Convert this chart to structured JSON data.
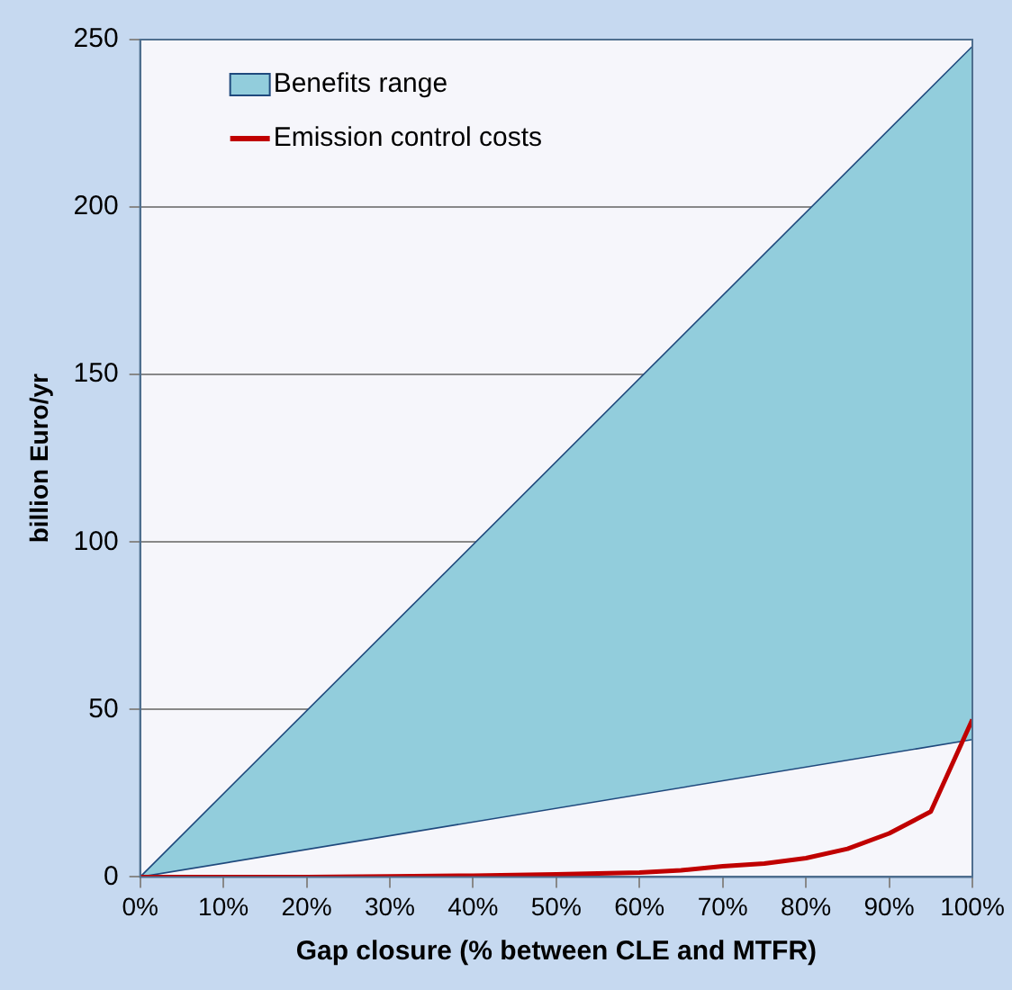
{
  "chart_data": {
    "type": "line",
    "xlabel": "Gap closure (% between CLE and MTFR)",
    "ylabel": "billion Euro/yr",
    "xlim": [
      0,
      100
    ],
    "ylim": [
      0,
      250
    ],
    "xticks": [
      {
        "value": 0,
        "label": "0%"
      },
      {
        "value": 10,
        "label": "10%"
      },
      {
        "value": 20,
        "label": "20%"
      },
      {
        "value": 30,
        "label": "30%"
      },
      {
        "value": 40,
        "label": "40%"
      },
      {
        "value": 50,
        "label": "50%"
      },
      {
        "value": 60,
        "label": "60%"
      },
      {
        "value": 70,
        "label": "70%"
      },
      {
        "value": 80,
        "label": "80%"
      },
      {
        "value": 90,
        "label": "90%"
      },
      {
        "value": 100,
        "label": "100%"
      }
    ],
    "yticks": [
      0,
      50,
      100,
      150,
      200,
      250
    ],
    "grid": "y",
    "legend": "top left",
    "marker": "none",
    "line_style": "solid",
    "series": [
      {
        "type": "line",
        "color": "#1f497d",
        "x": [
          0,
          100
        ],
        "values": [
          0,
          41
        ]
      },
      {
        "name": "Benefits range",
        "type": "area",
        "color": "#92cddc",
        "x": [
          0,
          100
        ],
        "values": [
          0,
          248
        ]
      },
      {
        "name": "Emission control costs",
        "color": "#c00000",
        "x": [
          0,
          10,
          20,
          30,
          40,
          50,
          60,
          65,
          70,
          75,
          80,
          85,
          90,
          95,
          100
        ],
        "values": [
          0,
          0,
          0,
          0.2,
          0.4,
          0.8,
          1.3,
          2,
          3.2,
          4,
          5.6,
          8.4,
          13,
          19.5,
          47
        ]
      }
    ]
  }
}
